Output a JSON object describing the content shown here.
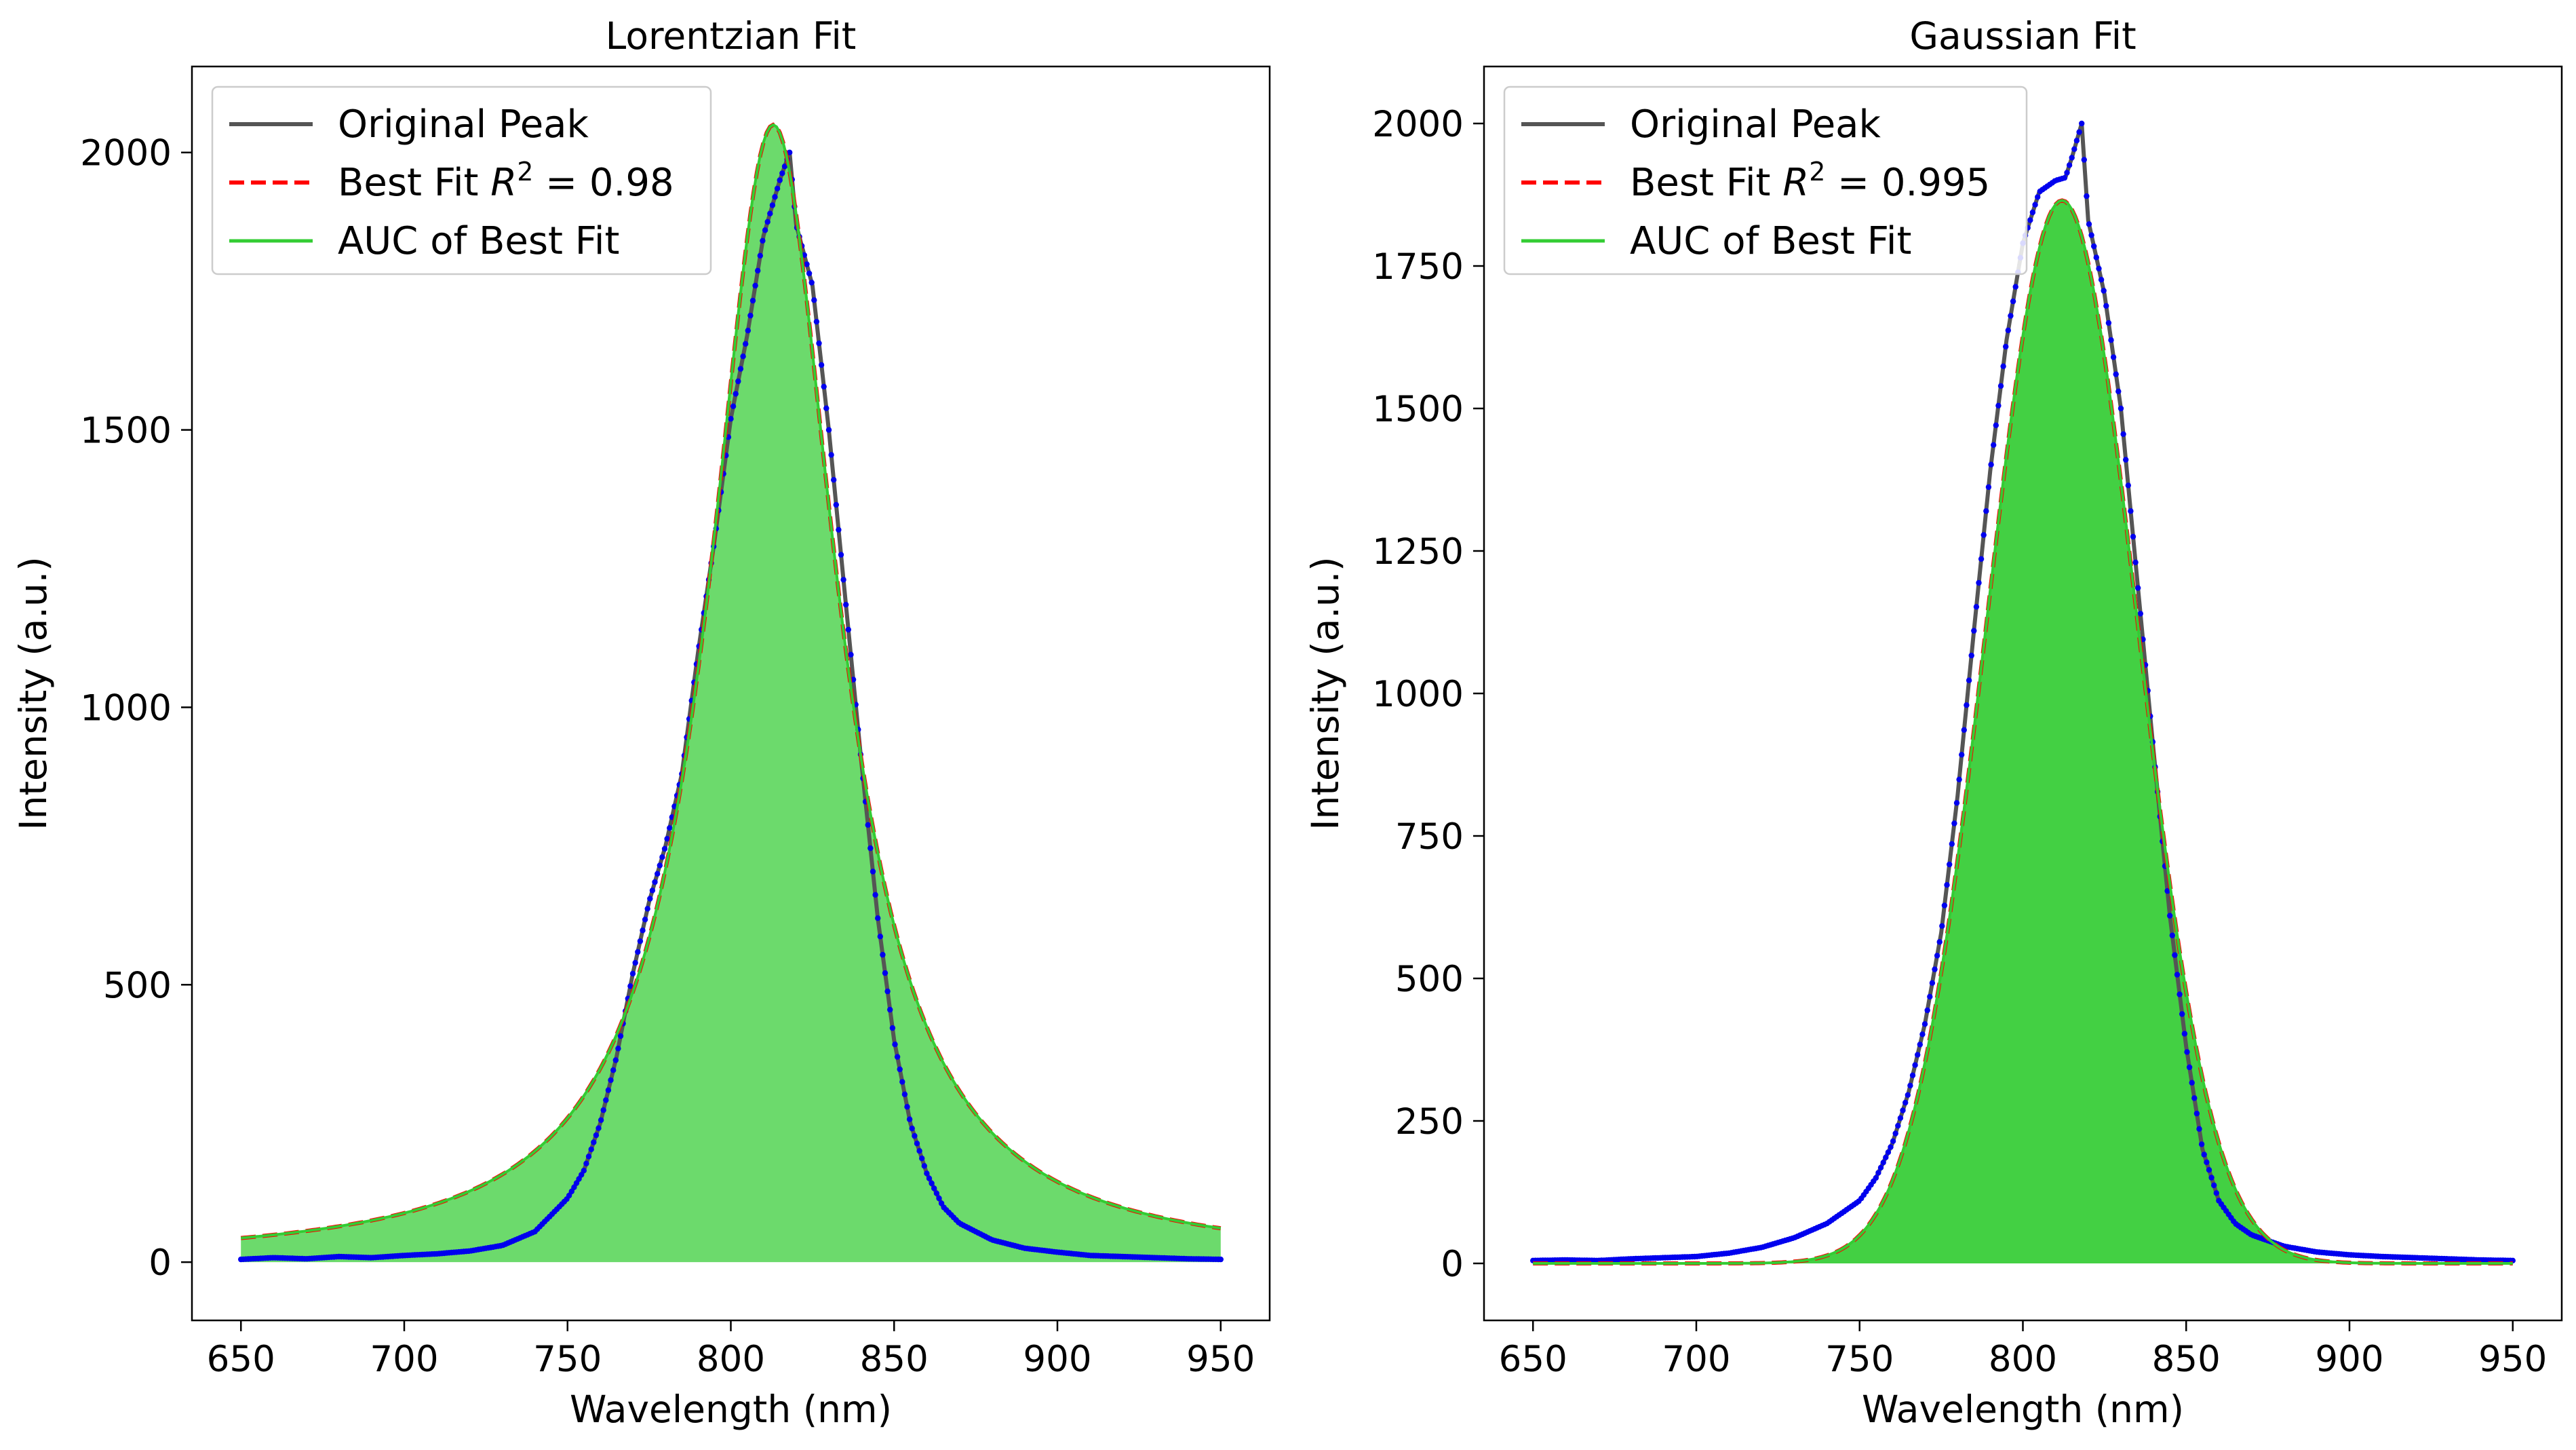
{
  "chart_data": [
    {
      "type": "line",
      "title": "Lorentzian Fit",
      "xlabel": "Wavelength (nm)",
      "ylabel": "Intensity (a.u.)",
      "xlim": [
        635,
        965
      ],
      "ylim": [
        -105,
        2155
      ],
      "x_ticks": [
        650,
        700,
        750,
        800,
        850,
        900,
        950
      ],
      "y_ticks": [
        0,
        500,
        1000,
        1500,
        2000
      ],
      "grid": false,
      "legend_position": "upper-left",
      "legend": [
        {
          "label": "Original Peak",
          "style": "solid",
          "color": "#555555"
        },
        {
          "label": "Best Fit R² = 0.98",
          "label_prefix": "Best Fit ",
          "label_var": "R",
          "label_sup": "2",
          "label_suffix": " = 0.98",
          "style": "dashed",
          "color": "#ff0000"
        },
        {
          "label": "AUC of Best Fit",
          "style": "solid",
          "color": "#33cc33"
        }
      ],
      "fit": {
        "model": "lorentzian",
        "center": 813,
        "amplitude": 2050,
        "hwhm": 24,
        "offset": 0
      },
      "fill_color": "#33cc33",
      "fill_opacity": 0.72,
      "original_color": "#555555",
      "points_color": "#0000ee",
      "series": [
        {
          "name": "Original Peak",
          "x": [
            650,
            660,
            670,
            680,
            690,
            700,
            710,
            720,
            730,
            740,
            750,
            755,
            760,
            765,
            770,
            775,
            780,
            785,
            790,
            795,
            800,
            805,
            810,
            815,
            818,
            820,
            825,
            830,
            835,
            840,
            845,
            850,
            855,
            860,
            865,
            870,
            880,
            890,
            900,
            910,
            920,
            930,
            940,
            950
          ],
          "y": [
            5,
            8,
            6,
            10,
            8,
            12,
            15,
            20,
            30,
            55,
            115,
            165,
            250,
            370,
            520,
            650,
            750,
            880,
            1100,
            1300,
            1520,
            1670,
            1850,
            1950,
            2000,
            1870,
            1760,
            1500,
            1200,
            900,
            620,
            400,
            250,
            160,
            100,
            70,
            40,
            25,
            18,
            12,
            10,
            8,
            6,
            5
          ]
        }
      ]
    },
    {
      "type": "line",
      "title": "Gaussian Fit",
      "xlabel": "Wavelength (nm)",
      "ylabel": "Intensity (a.u.)",
      "xlim": [
        635,
        965
      ],
      "ylim": [
        -100,
        2100
      ],
      "x_ticks": [
        650,
        700,
        750,
        800,
        850,
        900,
        950
      ],
      "y_ticks": [
        0,
        250,
        500,
        750,
        1000,
        1250,
        1500,
        1750,
        2000
      ],
      "grid": false,
      "legend_position": "upper-left",
      "legend": [
        {
          "label": "Original Peak",
          "style": "solid",
          "color": "#555555"
        },
        {
          "label": "Best Fit R² = 0.995",
          "label_prefix": "Best Fit ",
          "label_var": "R",
          "label_sup": "2",
          "label_suffix": " = 0.995",
          "style": "dashed",
          "color": "#ff0000"
        },
        {
          "label": "AUC of Best Fit",
          "style": "solid",
          "color": "#33cc33"
        }
      ],
      "fit": {
        "model": "gaussian",
        "center": 812,
        "amplitude": 1865,
        "sigma": 23,
        "offset": 0
      },
      "fill_color": "#33cc33",
      "fill_opacity": 0.92,
      "original_color": "#555555",
      "points_color": "#0000ee",
      "series": [
        {
          "name": "Original Peak",
          "x": [
            650,
            660,
            670,
            680,
            690,
            700,
            710,
            720,
            730,
            740,
            750,
            755,
            760,
            765,
            770,
            775,
            780,
            785,
            790,
            795,
            800,
            805,
            810,
            813,
            815,
            818,
            820,
            825,
            830,
            835,
            840,
            845,
            850,
            855,
            860,
            865,
            870,
            880,
            890,
            900,
            910,
            920,
            930,
            940,
            950
          ],
          "y": [
            5,
            6,
            5,
            8,
            10,
            12,
            18,
            28,
            45,
            70,
            110,
            150,
            210,
            300,
            420,
            580,
            820,
            1110,
            1390,
            1620,
            1790,
            1880,
            1900,
            1905,
            1940,
            2000,
            1830,
            1700,
            1500,
            1200,
            900,
            610,
            380,
            200,
            110,
            70,
            50,
            30,
            20,
            15,
            12,
            10,
            8,
            6,
            5
          ]
        }
      ]
    }
  ]
}
